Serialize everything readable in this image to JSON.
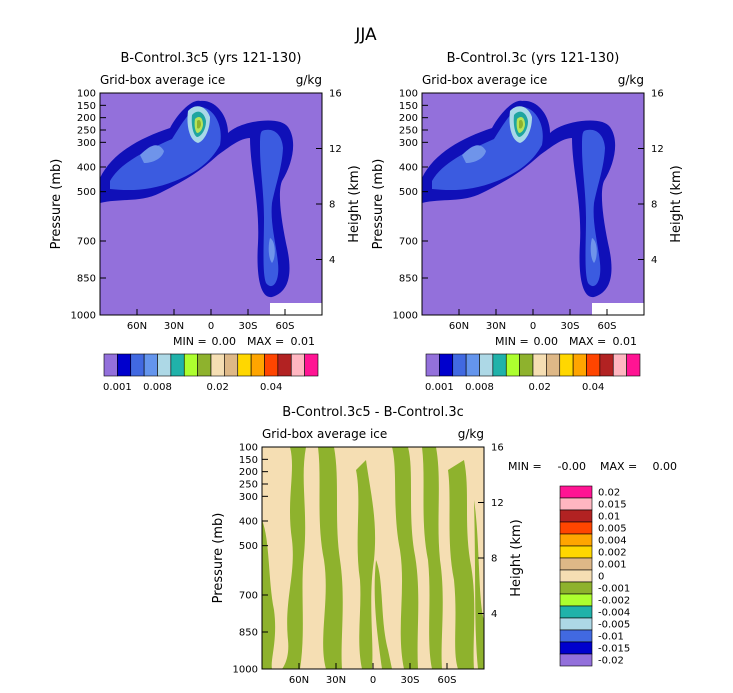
{
  "main_title": "JJA",
  "colors": {
    "background": "#9370DB",
    "diff_bg": "#F5DEB3",
    "diff_fill": "#8EB22D"
  },
  "chart_data": [
    {
      "type": "contour",
      "title": "B-Control.3c5 (yrs 121-130)",
      "subtitle_left": "Grid-box average ice",
      "subtitle_right": "g/kg",
      "ylabel": "Pressure (mb)",
      "ylabel_right": "Height (km)",
      "y_ticks": [
        "100",
        "150",
        "200",
        "250",
        "300",
        "400",
        "500",
        "700",
        "850",
        "1000"
      ],
      "y_ticks_right": [
        "16",
        "12",
        "8",
        "4"
      ],
      "x_ticks": [
        "60N",
        "30N",
        "0",
        "30S",
        "60S"
      ],
      "min_label": "MIN =",
      "min_value": "0.00",
      "max_label": "MAX =",
      "max_value": "0.01",
      "colorbar_levels": [
        "0.001",
        "0.008",
        "0.02",
        "0.04"
      ]
    },
    {
      "type": "contour",
      "title": "B-Control.3c (yrs 121-130)",
      "subtitle_left": "Grid-box average ice",
      "subtitle_right": "g/kg",
      "ylabel": "Pressure (mb)",
      "ylabel_right": "Height (km)",
      "y_ticks": [
        "100",
        "150",
        "200",
        "250",
        "300",
        "400",
        "500",
        "700",
        "850",
        "1000"
      ],
      "y_ticks_right": [
        "16",
        "12",
        "8",
        "4"
      ],
      "x_ticks": [
        "60N",
        "30N",
        "0",
        "30S",
        "60S"
      ],
      "min_label": "MIN =",
      "min_value": "0.00",
      "max_label": "MAX =",
      "max_value": "0.01",
      "colorbar_levels": [
        "0.001",
        "0.008",
        "0.02",
        "0.04"
      ]
    },
    {
      "type": "contour",
      "title": "B-Control.3c5 - B-Control.3c",
      "subtitle_left": "Grid-box average ice",
      "subtitle_right": "g/kg",
      "ylabel": "Pressure (mb)",
      "ylabel_right": "Height (km)",
      "y_ticks": [
        "100",
        "150",
        "200",
        "250",
        "300",
        "400",
        "500",
        "700",
        "850",
        "1000"
      ],
      "y_ticks_right": [
        "16",
        "12",
        "8",
        "4"
      ],
      "x_ticks": [
        "60N",
        "30N",
        "0",
        "30S",
        "60S"
      ],
      "min_label": "MIN =",
      "min_value": "-0.00",
      "max_label": "MAX =",
      "max_value": "0.00",
      "colorbar_levels": [
        "0.02",
        "0.015",
        "0.01",
        "0.005",
        "0.004",
        "0.002",
        "0.001",
        "0",
        "-0.001",
        "-0.002",
        "-0.004",
        "-0.005",
        "-0.01",
        "-0.015",
        "-0.02"
      ]
    }
  ]
}
